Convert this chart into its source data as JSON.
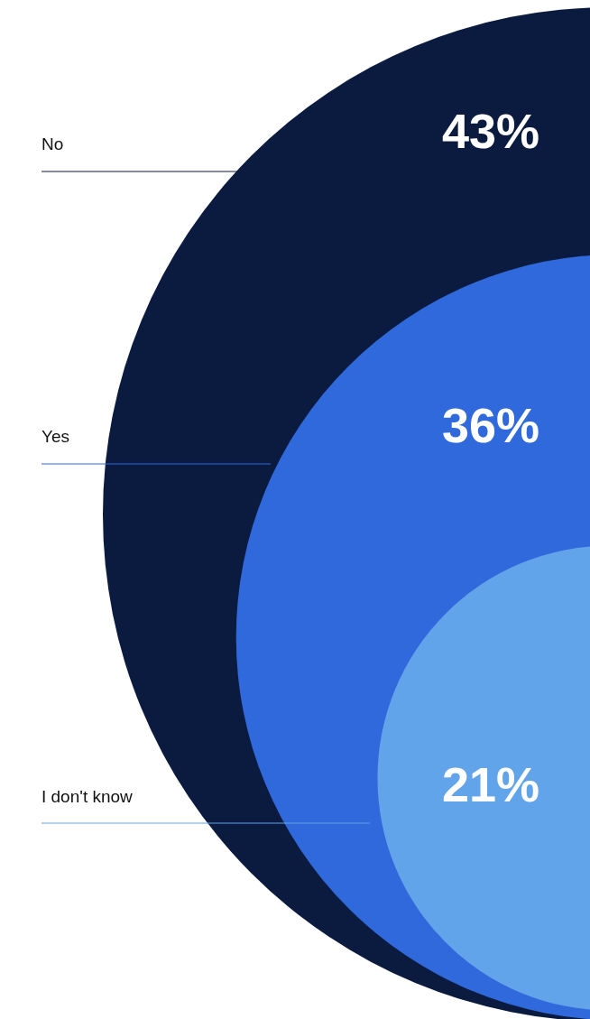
{
  "chart_data": {
    "type": "other",
    "categories": [
      "No",
      "Yes",
      "I don't know"
    ],
    "values": [
      43,
      36,
      21
    ],
    "value_labels": [
      "43%",
      "36%",
      "21%"
    ],
    "colors": [
      "#0b1b3f",
      "#2f69dc",
      "#62a4ea"
    ]
  }
}
